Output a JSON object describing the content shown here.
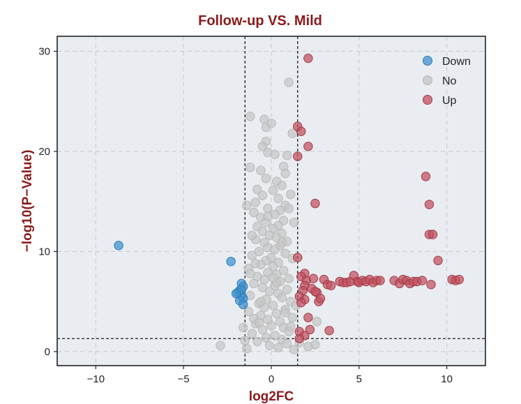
{
  "chart_data": {
    "type": "scatter",
    "title": "Follow-up VS. Mild",
    "xlabel": "log2FC",
    "ylabel": "−log10(P−Value)",
    "xlim": [
      -12.2,
      12.2
    ],
    "ylim": [
      -1.4,
      31.5
    ],
    "x_ticks": [
      -10,
      -5,
      0,
      5,
      10
    ],
    "x_tick_labels": [
      "−10",
      "−5",
      "0",
      "5",
      "10"
    ],
    "y_ticks": [
      0,
      10,
      20,
      30
    ],
    "y_tick_labels": [
      "0",
      "10",
      "20",
      "30"
    ],
    "grid": true,
    "legend_position": "top-right",
    "thresholds": {
      "x": [
        -1.5,
        1.5
      ],
      "y": 1.3
    },
    "colors": {
      "title": "#8b1a1a",
      "axis_label": "#8b1a1a",
      "plot_bg": "#e9edf1",
      "grid": "#c4c8cd",
      "down": "#3f92cf",
      "no": "#c6c6c6",
      "up": "#c0505e"
    },
    "series": [
      {
        "name": "Down",
        "color": "#3f92cf",
        "points": [
          [
            -8.7,
            10.6
          ],
          [
            -2.3,
            9.0
          ],
          [
            -1.7,
            6.8
          ],
          [
            -1.6,
            6.5
          ],
          [
            -1.8,
            6.1
          ],
          [
            -1.9,
            5.9
          ],
          [
            -1.7,
            5.6
          ],
          [
            -1.6,
            5.3
          ],
          [
            -1.8,
            5.1
          ],
          [
            -1.6,
            4.7
          ],
          [
            -1.7,
            6.2
          ],
          [
            -2.0,
            5.8
          ]
        ]
      },
      {
        "name": "No",
        "color": "#c6c6c6",
        "points": [
          [
            1.0,
            26.9
          ],
          [
            -1.2,
            23.5
          ],
          [
            -0.4,
            23.2
          ],
          [
            -0.3,
            22.4
          ],
          [
            0.0,
            22.8
          ],
          [
            1.2,
            21.8
          ],
          [
            -0.3,
            21.0
          ],
          [
            -0.5,
            20.5
          ],
          [
            -0.2,
            19.9
          ],
          [
            0.2,
            19.7
          ],
          [
            0.9,
            19.6
          ],
          [
            -1.2,
            18.4
          ],
          [
            0.7,
            18.5
          ],
          [
            -0.6,
            18.1
          ],
          [
            0.8,
            17.8
          ],
          [
            -0.3,
            17.3
          ],
          [
            0.3,
            17.0
          ],
          [
            0.6,
            16.6
          ],
          [
            -0.8,
            16.2
          ],
          [
            0.1,
            16.1
          ],
          [
            -0.5,
            15.6
          ],
          [
            0.4,
            15.3
          ],
          [
            1.1,
            15.7
          ],
          [
            -0.9,
            14.9
          ],
          [
            -1.4,
            14.6
          ],
          [
            0.8,
            14.6
          ],
          [
            -0.2,
            14.3
          ],
          [
            0.5,
            14.1
          ],
          [
            1.0,
            14.3
          ],
          [
            -1.0,
            13.9
          ],
          [
            0.2,
            13.7
          ],
          [
            -0.6,
            13.4
          ],
          [
            0.7,
            13.1
          ],
          [
            -0.3,
            12.9
          ],
          [
            0.4,
            12.6
          ],
          [
            -0.8,
            12.5
          ],
          [
            0.1,
            12.3
          ],
          [
            -0.5,
            12.0
          ],
          [
            0.6,
            11.8
          ],
          [
            -0.1,
            11.6
          ],
          [
            0.3,
            11.4
          ],
          [
            -0.9,
            11.2
          ],
          [
            0.9,
            11.0
          ],
          [
            -0.4,
            10.9
          ],
          [
            0.5,
            10.6
          ],
          [
            -0.2,
            10.4
          ],
          [
            0.2,
            10.2
          ],
          [
            -0.7,
            10.0
          ],
          [
            0.8,
            9.8
          ],
          [
            -1.1,
            9.6
          ],
          [
            1.2,
            9.3
          ],
          [
            -0.3,
            9.1
          ],
          [
            0.4,
            8.9
          ],
          [
            -0.6,
            8.7
          ],
          [
            0.1,
            8.5
          ],
          [
            -1.3,
            8.3
          ],
          [
            0.7,
            8.1
          ],
          [
            -0.2,
            7.9
          ],
          [
            0.3,
            7.7
          ],
          [
            -0.8,
            7.5
          ],
          [
            1.0,
            7.3
          ],
          [
            -0.4,
            7.2
          ],
          [
            0.5,
            7.0
          ],
          [
            -1.0,
            6.8
          ],
          [
            0.2,
            6.6
          ],
          [
            -0.5,
            6.4
          ],
          [
            0.9,
            6.2
          ],
          [
            -0.1,
            6.0
          ],
          [
            0.4,
            5.8
          ],
          [
            -1.2,
            5.6
          ],
          [
            0.6,
            5.4
          ],
          [
            -0.3,
            5.2
          ],
          [
            1.1,
            5.0
          ],
          [
            -0.7,
            4.8
          ],
          [
            0.1,
            4.6
          ],
          [
            -0.4,
            4.4
          ],
          [
            0.8,
            4.2
          ],
          [
            -1.3,
            4.0
          ],
          [
            0.3,
            3.8
          ],
          [
            -0.6,
            3.6
          ],
          [
            1.2,
            3.4
          ],
          [
            -0.2,
            3.2
          ],
          [
            0.5,
            3.0
          ],
          [
            -0.9,
            2.8
          ],
          [
            0.0,
            2.6
          ],
          [
            0.7,
            2.4
          ],
          [
            -0.5,
            2.2
          ],
          [
            1.0,
            2.0
          ],
          [
            -1.1,
            1.8
          ],
          [
            0.2,
            1.6
          ],
          [
            -0.3,
            1.4
          ],
          [
            0.6,
            1.2
          ],
          [
            -0.8,
            1.0
          ],
          [
            0.9,
            0.8
          ],
          [
            -0.1,
            0.6
          ],
          [
            0.4,
            0.4
          ],
          [
            -1.4,
            0.3
          ],
          [
            1.3,
            0.2
          ],
          [
            -2.9,
            0.6
          ],
          [
            1.6,
            0.9
          ],
          [
            2.5,
            0.7
          ],
          [
            2.6,
            3.0
          ],
          [
            2.1,
            0.5
          ],
          [
            -1.6,
            2.4
          ],
          [
            1.4,
            4.6
          ],
          [
            -1.5,
            1.1
          ],
          [
            -1.2,
            7.8
          ],
          [
            1.3,
            12.9
          ],
          [
            -1.0,
            3.3
          ],
          [
            1.1,
            2.5
          ],
          [
            0.0,
            9.4
          ],
          [
            -0.6,
            5.0
          ],
          [
            0.3,
            6.9
          ],
          [
            -0.9,
            8.8
          ],
          [
            0.8,
            3.9
          ],
          [
            -0.2,
            13.5
          ],
          [
            0.6,
            10.9
          ],
          [
            -1.1,
            11.6
          ],
          [
            0.1,
            7.4
          ],
          [
            -0.7,
            2.9
          ]
        ]
      },
      {
        "name": "Up",
        "color": "#c0505e",
        "points": [
          [
            2.1,
            29.3
          ],
          [
            1.5,
            22.5
          ],
          [
            1.7,
            22.0
          ],
          [
            2.1,
            20.5
          ],
          [
            1.5,
            19.5
          ],
          [
            2.5,
            14.8
          ],
          [
            1.5,
            9.4
          ],
          [
            8.8,
            17.5
          ],
          [
            9.0,
            14.7
          ],
          [
            9.0,
            11.7
          ],
          [
            9.2,
            11.7
          ],
          [
            9.5,
            9.1
          ],
          [
            1.9,
            7.8
          ],
          [
            1.7,
            7.5
          ],
          [
            2.0,
            7.1
          ],
          [
            1.9,
            6.6
          ],
          [
            1.8,
            6.1
          ],
          [
            2.4,
            7.3
          ],
          [
            2.3,
            6.3
          ],
          [
            2.6,
            5.9
          ],
          [
            3.0,
            7.2
          ],
          [
            3.2,
            6.7
          ],
          [
            3.4,
            6.6
          ],
          [
            3.9,
            7.0
          ],
          [
            4.1,
            6.9
          ],
          [
            4.3,
            6.9
          ],
          [
            4.5,
            7.0
          ],
          [
            4.7,
            7.6
          ],
          [
            4.9,
            7.0
          ],
          [
            5.0,
            6.9
          ],
          [
            5.2,
            7.1
          ],
          [
            5.4,
            7.0
          ],
          [
            5.6,
            7.2
          ],
          [
            5.8,
            6.9
          ],
          [
            6.0,
            7.1
          ],
          [
            6.2,
            7.1
          ],
          [
            7.0,
            7.1
          ],
          [
            7.3,
            6.8
          ],
          [
            7.5,
            7.2
          ],
          [
            7.7,
            7.1
          ],
          [
            7.9,
            6.8
          ],
          [
            8.1,
            7.0
          ],
          [
            8.3,
            7.0
          ],
          [
            8.6,
            7.1
          ],
          [
            9.1,
            6.7
          ],
          [
            10.3,
            7.2
          ],
          [
            10.5,
            7.1
          ],
          [
            10.7,
            7.2
          ],
          [
            1.6,
            5.5
          ],
          [
            1.9,
            5.2
          ],
          [
            2.7,
            5.0
          ],
          [
            2.5,
            6.0
          ],
          [
            1.7,
            4.9
          ],
          [
            2.1,
            3.4
          ],
          [
            2.2,
            2.2
          ],
          [
            1.6,
            2.0
          ],
          [
            1.9,
            1.6
          ],
          [
            1.6,
            1.3
          ],
          [
            3.3,
            2.1
          ],
          [
            2.8,
            5.3
          ]
        ]
      }
    ]
  }
}
